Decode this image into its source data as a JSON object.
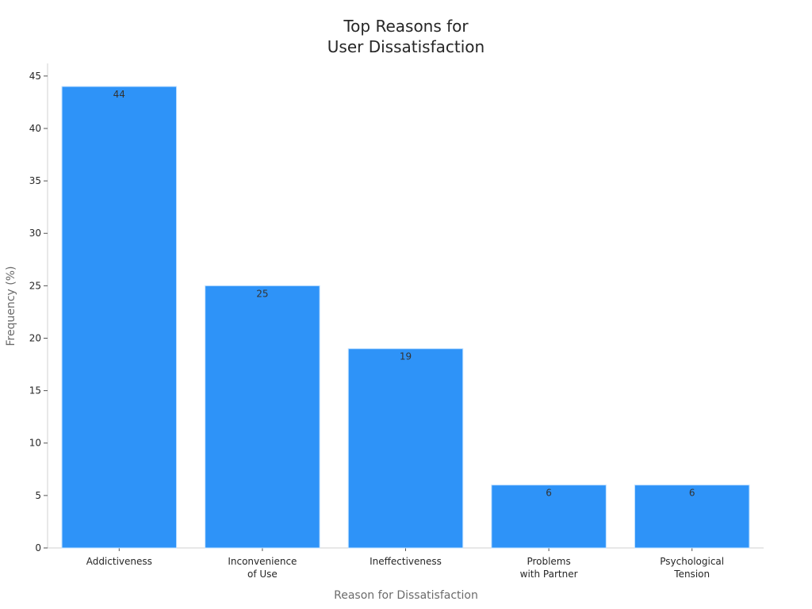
{
  "chart_data": {
    "type": "bar",
    "title_lines": [
      "Top Reasons for",
      "User Dissatisfaction"
    ],
    "xlabel": "Reason for Dissatisfaction",
    "ylabel": "Frequency (%)",
    "categories": [
      [
        "Addictiveness"
      ],
      [
        "Inconvenience",
        "of Use"
      ],
      [
        "Ineffectiveness"
      ],
      [
        "Problems",
        "with Partner"
      ],
      [
        "Psychological",
        "Tension"
      ]
    ],
    "values": [
      44,
      25,
      19,
      6,
      6
    ],
    "data_labels": [
      "44",
      "25",
      "19",
      "6",
      "6"
    ],
    "ylim": [
      0,
      46.2
    ],
    "yticks": [
      0,
      5,
      10,
      15,
      20,
      25,
      30,
      35,
      40,
      45
    ],
    "grid": false,
    "legend": "none",
    "colors": {
      "bar": "#2e93f8",
      "bar_edge": "#bfe0ff",
      "axis": "#d0d0d0",
      "text": "#262626"
    }
  }
}
